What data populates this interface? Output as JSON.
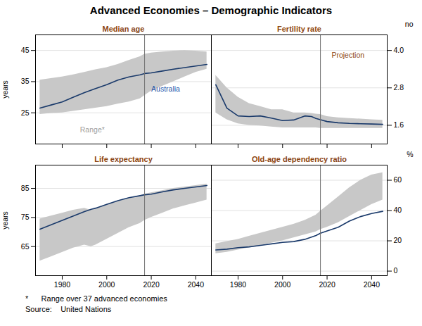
{
  "title": "Advanced Economies – Demographic Indicators",
  "annotations": [
    "*      Range over 37 advanced economies",
    "Source:    United Nations"
  ],
  "chart_data": [
    {
      "type": "line",
      "title": "Median age",
      "ylabel": "years",
      "x": [
        1970,
        1975,
        1980,
        1985,
        1990,
        1995,
        2000,
        2005,
        2010,
        2015,
        2017,
        2020,
        2025,
        2030,
        2035,
        2040,
        2045
      ],
      "series": [
        {
          "type": "area",
          "color": "#c8c8c8",
          "lower": [
            24.5,
            24.8,
            25.0,
            25.5,
            26.0,
            26.5,
            27.0,
            27.8,
            28.5,
            29.5,
            30.5,
            32.0,
            33.5,
            35.0,
            36.5,
            38.0,
            39.0
          ],
          "upper": [
            35.5,
            36.0,
            36.5,
            37.2,
            38.0,
            38.8,
            39.5,
            40.5,
            41.8,
            43.0,
            43.8,
            44.2,
            44.5,
            44.8,
            45.0,
            44.8,
            44.5
          ]
        },
        {
          "type": "line",
          "color": "#1a3a6b",
          "values": [
            26.5,
            27.5,
            28.5,
            30.0,
            31.5,
            32.8,
            34.0,
            35.5,
            36.5,
            37.2,
            37.6,
            37.8,
            38.4,
            39.0,
            39.5,
            40.0,
            40.5
          ]
        }
      ],
      "vline": 2017,
      "annotations": [
        {
          "text": "Australia",
          "x": 2020,
          "y": 32.5,
          "color": "#2255aa"
        },
        {
          "text": "Range*",
          "x": 1988,
          "y": 19.5,
          "color": "#a0a0a0"
        }
      ],
      "xlim": [
        1968,
        2047
      ],
      "xticks": [
        1980,
        2000,
        2020,
        2040
      ],
      "ylim": [
        15,
        50
      ],
      "yticks": [
        25,
        35,
        45
      ],
      "grid": true,
      "tick_labels": "y"
    },
    {
      "type": "line",
      "title": "Fertility rate",
      "ylabel": "no",
      "x": [
        1970,
        1975,
        1980,
        1985,
        1990,
        1995,
        2000,
        2005,
        2010,
        2013,
        2015,
        2017,
        2020,
        2025,
        2030,
        2035,
        2040,
        2045
      ],
      "series": [
        {
          "type": "area",
          "color": "#c8c8c8",
          "lower": [
            2.0,
            1.78,
            1.65,
            1.6,
            1.58,
            1.55,
            1.52,
            1.52,
            1.52,
            1.52,
            1.52,
            1.5,
            1.5,
            1.5,
            1.5,
            1.5,
            1.5,
            1.5
          ],
          "upper": [
            3.2,
            2.8,
            2.5,
            2.3,
            2.2,
            2.1,
            2.1,
            2.0,
            2.0,
            1.98,
            1.96,
            1.95,
            1.88,
            1.84,
            1.82,
            1.8,
            1.78,
            1.76
          ]
        },
        {
          "type": "line",
          "color": "#1a3a6b",
          "values": [
            2.9,
            2.15,
            1.9,
            1.88,
            1.9,
            1.83,
            1.75,
            1.77,
            1.9,
            1.88,
            1.82,
            1.78,
            1.72,
            1.68,
            1.66,
            1.65,
            1.64,
            1.63
          ]
        }
      ],
      "vline": 2017,
      "annotations": [
        {
          "text": "Projection",
          "x": 2022,
          "y": 3.85,
          "color": "#8B4513"
        }
      ],
      "xlim": [
        1968,
        2047
      ],
      "xticks": [
        1980,
        2000,
        2020,
        2040
      ],
      "ylim": [
        1.0,
        4.5
      ],
      "yticks": [
        1.6,
        2.8,
        {
          "value": 4.0,
          "label": "4.0"
        }
      ],
      "grid": true,
      "tick_labels": "y"
    },
    {
      "type": "line",
      "title": "Life expectancy",
      "ylabel": "years",
      "x": [
        1970,
        1975,
        1980,
        1985,
        1990,
        1993,
        1995,
        2000,
        2005,
        2010,
        2015,
        2017,
        2020,
        2025,
        2030,
        2035,
        2040,
        2045
      ],
      "series": [
        {
          "type": "area",
          "color": "#c8c8c8",
          "lower": [
            60.0,
            61.5,
            63.0,
            64.5,
            65.5,
            65.0,
            65.5,
            67.5,
            69.5,
            71.5,
            73.0,
            74.0,
            75.0,
            76.5,
            78.0,
            79.0,
            80.0,
            81.0
          ],
          "upper": [
            74.5,
            75.5,
            76.5,
            77.5,
            78.2,
            77.5,
            78.0,
            79.5,
            80.5,
            81.5,
            82.5,
            83.0,
            83.5,
            84.2,
            85.0,
            85.5,
            86.0,
            86.5
          ]
        },
        {
          "type": "line",
          "color": "#1a3a6b",
          "values": [
            71.0,
            72.5,
            74.0,
            75.5,
            77.0,
            77.8,
            78.2,
            79.5,
            80.8,
            81.8,
            82.5,
            82.8,
            83.0,
            83.8,
            84.5,
            85.0,
            85.5,
            86.0
          ]
        }
      ],
      "vline": 2017,
      "xlim": [
        1968,
        2047
      ],
      "xticks": [
        1980,
        2000,
        2020,
        2040
      ],
      "ylim": [
        55,
        93
      ],
      "yticks": [
        65,
        75,
        85
      ],
      "grid": true
    },
    {
      "type": "line",
      "title": "Old-age dependency ratio",
      "ylabel": "%",
      "x": [
        1970,
        1975,
        1980,
        1985,
        1990,
        1995,
        2000,
        2005,
        2010,
        2015,
        2017,
        2020,
        2025,
        2030,
        2035,
        2040,
        2045
      ],
      "series": [
        {
          "type": "area",
          "color": "#c8c8c8",
          "lower": [
            11.5,
            12.5,
            14.0,
            15.5,
            17.0,
            18.5,
            20.0,
            22.0,
            24.0,
            26.0,
            27.5,
            29.0,
            32.0,
            36.0,
            40.0,
            44.0,
            47.0
          ],
          "upper": [
            18.0,
            19.5,
            21.0,
            23.0,
            25.0,
            27.0,
            29.0,
            31.0,
            33.5,
            37.0,
            39.5,
            43.0,
            49.0,
            55.0,
            60.0,
            63.5,
            65.0
          ]
        },
        {
          "type": "line",
          "color": "#1a3a6b",
          "values": [
            14.0,
            14.5,
            15.5,
            16.0,
            17.0,
            18.0,
            19.0,
            19.5,
            21.0,
            23.5,
            25.0,
            26.5,
            29.0,
            33.0,
            36.0,
            38.0,
            39.5
          ]
        }
      ],
      "vline": 2017,
      "xlim": [
        1968,
        2047
      ],
      "xticks": [
        1980,
        2000,
        2020,
        2040
      ],
      "ylim": [
        -3,
        70
      ],
      "yticks": [
        0,
        20,
        40,
        60
      ],
      "grid": true
    }
  ]
}
